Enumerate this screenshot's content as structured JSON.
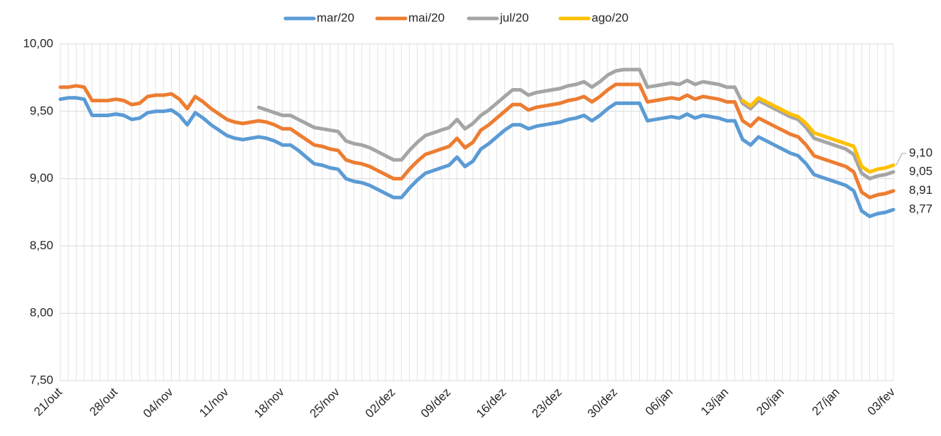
{
  "chart_data": {
    "type": "line",
    "categories": [
      "21/out",
      null,
      null,
      null,
      null,
      null,
      null,
      "28/out",
      null,
      null,
      null,
      null,
      null,
      null,
      "04/nov",
      null,
      null,
      null,
      null,
      null,
      null,
      "11/nov",
      null,
      null,
      null,
      null,
      null,
      null,
      "18/nov",
      null,
      null,
      null,
      null,
      null,
      null,
      "25/nov",
      null,
      null,
      null,
      null,
      null,
      null,
      "02/dez",
      null,
      null,
      null,
      null,
      null,
      null,
      "09/dez",
      null,
      null,
      null,
      null,
      null,
      null,
      "16/dez",
      null,
      null,
      null,
      null,
      null,
      null,
      "23/dez",
      null,
      null,
      null,
      null,
      null,
      null,
      "30/dez",
      null,
      null,
      null,
      null,
      null,
      null,
      "06/jan",
      null,
      null,
      null,
      null,
      null,
      null,
      "13/jan",
      null,
      null,
      null,
      null,
      null,
      null,
      "20/jan",
      null,
      null,
      null,
      null,
      null,
      null,
      "27/jan",
      null,
      null,
      null,
      null,
      null,
      null,
      "03/fev"
    ],
    "series": [
      {
        "name": "mar/20",
        "color": "#5b9bd5",
        "values": [
          9.59,
          9.6,
          9.6,
          9.59,
          9.47,
          9.47,
          9.47,
          9.48,
          9.47,
          9.44,
          9.45,
          9.49,
          9.5,
          9.5,
          9.51,
          9.47,
          9.4,
          9.49,
          9.45,
          9.4,
          9.36,
          9.32,
          9.3,
          9.29,
          9.3,
          9.31,
          9.3,
          9.28,
          9.25,
          9.25,
          9.21,
          9.16,
          9.11,
          9.1,
          9.08,
          9.07,
          9.0,
          8.98,
          8.97,
          8.95,
          8.92,
          8.89,
          8.86,
          8.86,
          8.93,
          8.99,
          9.04,
          9.06,
          9.08,
          9.1,
          9.16,
          9.09,
          9.13,
          9.22,
          9.26,
          9.31,
          9.36,
          9.4,
          9.4,
          9.37,
          9.39,
          9.4,
          9.41,
          9.42,
          9.44,
          9.45,
          9.47,
          9.43,
          9.47,
          9.52,
          9.56,
          9.56,
          9.56,
          9.56,
          9.43,
          9.44,
          9.45,
          9.46,
          9.45,
          9.48,
          9.45,
          9.47,
          9.46,
          9.45,
          9.43,
          9.43,
          9.29,
          9.25,
          9.31,
          9.28,
          9.25,
          9.22,
          9.19,
          9.17,
          9.11,
          9.03,
          9.01,
          8.99,
          8.97,
          8.95,
          8.91,
          8.76,
          8.72,
          8.74,
          8.75,
          8.77
        ],
        "value_labels": [
          null,
          null,
          null,
          null,
          null,
          null,
          null,
          null,
          null,
          null,
          null,
          null,
          null,
          null,
          null,
          null,
          null,
          null,
          null,
          null,
          null,
          null,
          null,
          null,
          null,
          null,
          null,
          null,
          null,
          null,
          null,
          null,
          null,
          null,
          null,
          null,
          null,
          null,
          null,
          null,
          null,
          null,
          null,
          null,
          null,
          null,
          null,
          null,
          null,
          null,
          null,
          null,
          null,
          null,
          null,
          null,
          null,
          null,
          null,
          null,
          null,
          null,
          null,
          null,
          null,
          null,
          null,
          null,
          null,
          null,
          null,
          null,
          null,
          null,
          null,
          null,
          null,
          null,
          null,
          null,
          null,
          null,
          null,
          null,
          null,
          null,
          null,
          null,
          null,
          null,
          null,
          null,
          null,
          null,
          null,
          null,
          null,
          null,
          null,
          null,
          null,
          null,
          null,
          null,
          null,
          "8,77"
        ]
      },
      {
        "name": "mai/20",
        "color": "#ed7d31",
        "values": [
          9.68,
          9.68,
          9.69,
          9.68,
          9.58,
          9.58,
          9.58,
          9.59,
          9.58,
          9.55,
          9.56,
          9.61,
          9.62,
          9.62,
          9.63,
          9.59,
          9.52,
          9.61,
          9.57,
          9.52,
          9.48,
          9.44,
          9.42,
          9.41,
          9.42,
          9.43,
          9.42,
          9.4,
          9.37,
          9.37,
          9.33,
          9.29,
          9.25,
          9.24,
          9.22,
          9.21,
          9.14,
          9.12,
          9.11,
          9.09,
          9.06,
          9.03,
          9.0,
          9.0,
          9.07,
          9.13,
          9.18,
          9.2,
          9.22,
          9.24,
          9.3,
          9.23,
          9.27,
          9.36,
          9.4,
          9.45,
          9.5,
          9.55,
          9.55,
          9.51,
          9.53,
          9.54,
          9.55,
          9.56,
          9.58,
          9.59,
          9.61,
          9.57,
          9.61,
          9.66,
          9.7,
          9.7,
          9.7,
          9.7,
          9.57,
          9.58,
          9.59,
          9.6,
          9.59,
          9.62,
          9.59,
          9.61,
          9.6,
          9.59,
          9.57,
          9.57,
          9.43,
          9.39,
          9.45,
          9.42,
          9.39,
          9.36,
          9.33,
          9.31,
          9.25,
          9.17,
          9.15,
          9.13,
          9.11,
          9.09,
          9.05,
          8.9,
          8.86,
          8.88,
          8.89,
          8.91
        ],
        "value_labels": [
          null,
          null,
          null,
          null,
          null,
          null,
          null,
          null,
          null,
          null,
          null,
          null,
          null,
          null,
          null,
          null,
          null,
          null,
          null,
          null,
          null,
          null,
          null,
          null,
          null,
          null,
          null,
          null,
          null,
          null,
          null,
          null,
          null,
          null,
          null,
          null,
          null,
          null,
          null,
          null,
          null,
          null,
          null,
          null,
          null,
          null,
          null,
          null,
          null,
          null,
          null,
          null,
          null,
          null,
          null,
          null,
          null,
          null,
          null,
          null,
          null,
          null,
          null,
          null,
          null,
          null,
          null,
          null,
          null,
          null,
          null,
          null,
          null,
          null,
          null,
          null,
          null,
          null,
          null,
          null,
          null,
          null,
          null,
          null,
          null,
          null,
          null,
          null,
          null,
          null,
          null,
          null,
          null,
          null,
          null,
          null,
          null,
          null,
          null,
          null,
          null,
          null,
          null,
          null,
          null,
          "8,91"
        ]
      },
      {
        "name": "jul/20",
        "color": "#a5a5a5",
        "values": [
          null,
          null,
          null,
          null,
          null,
          null,
          null,
          null,
          null,
          null,
          null,
          null,
          null,
          null,
          null,
          null,
          null,
          null,
          null,
          null,
          null,
          null,
          null,
          null,
          null,
          9.53,
          9.51,
          9.49,
          9.47,
          9.47,
          9.44,
          9.41,
          9.38,
          9.37,
          9.36,
          9.35,
          9.28,
          9.26,
          9.25,
          9.23,
          9.2,
          9.17,
          9.14,
          9.14,
          9.21,
          9.27,
          9.32,
          9.34,
          9.36,
          9.38,
          9.44,
          9.37,
          9.41,
          9.47,
          9.51,
          9.56,
          9.61,
          9.66,
          9.66,
          9.62,
          9.64,
          9.65,
          9.66,
          9.67,
          9.69,
          9.7,
          9.72,
          9.68,
          9.72,
          9.77,
          9.8,
          9.81,
          9.81,
          9.81,
          9.68,
          9.69,
          9.7,
          9.71,
          9.7,
          9.73,
          9.7,
          9.72,
          9.71,
          9.7,
          9.68,
          9.68,
          9.56,
          9.52,
          9.58,
          9.55,
          9.52,
          9.49,
          9.46,
          9.44,
          9.38,
          9.3,
          9.28,
          9.26,
          9.24,
          9.22,
          9.18,
          9.04,
          9.0,
          9.02,
          9.03,
          9.05
        ],
        "value_labels": [
          null,
          null,
          null,
          null,
          null,
          null,
          null,
          null,
          null,
          null,
          null,
          null,
          null,
          null,
          null,
          null,
          null,
          null,
          null,
          null,
          null,
          null,
          null,
          null,
          null,
          null,
          null,
          null,
          null,
          null,
          null,
          null,
          null,
          null,
          null,
          null,
          null,
          null,
          null,
          null,
          null,
          null,
          null,
          null,
          null,
          null,
          null,
          null,
          null,
          null,
          null,
          null,
          null,
          null,
          null,
          null,
          null,
          null,
          null,
          null,
          null,
          null,
          null,
          null,
          null,
          null,
          null,
          null,
          null,
          null,
          null,
          null,
          null,
          null,
          null,
          null,
          null,
          null,
          null,
          null,
          null,
          null,
          null,
          null,
          null,
          null,
          null,
          null,
          null,
          null,
          null,
          null,
          null,
          null,
          null,
          null,
          null,
          null,
          null,
          null,
          null,
          null,
          null,
          null,
          null,
          "9,05"
        ]
      },
      {
        "name": "ago/20",
        "color": "#ffc000",
        "values": [
          null,
          null,
          null,
          null,
          null,
          null,
          null,
          null,
          null,
          null,
          null,
          null,
          null,
          null,
          null,
          null,
          null,
          null,
          null,
          null,
          null,
          null,
          null,
          null,
          null,
          null,
          null,
          null,
          null,
          null,
          null,
          null,
          null,
          null,
          null,
          null,
          null,
          null,
          null,
          null,
          null,
          null,
          null,
          null,
          null,
          null,
          null,
          null,
          null,
          null,
          null,
          null,
          null,
          null,
          null,
          null,
          null,
          null,
          null,
          null,
          null,
          null,
          null,
          null,
          null,
          null,
          null,
          null,
          null,
          null,
          null,
          null,
          null,
          null,
          null,
          null,
          null,
          null,
          null,
          null,
          null,
          null,
          null,
          null,
          null,
          null,
          9.58,
          9.54,
          9.6,
          9.57,
          9.54,
          9.51,
          9.48,
          9.46,
          9.41,
          9.34,
          9.32,
          9.3,
          9.28,
          9.26,
          9.24,
          9.09,
          9.05,
          9.07,
          9.08,
          9.1
        ],
        "value_labels": [
          null,
          null,
          null,
          null,
          null,
          null,
          null,
          null,
          null,
          null,
          null,
          null,
          null,
          null,
          null,
          null,
          null,
          null,
          null,
          null,
          null,
          null,
          null,
          null,
          null,
          null,
          null,
          null,
          null,
          null,
          null,
          null,
          null,
          null,
          null,
          null,
          null,
          null,
          null,
          null,
          null,
          null,
          null,
          null,
          null,
          null,
          null,
          null,
          null,
          null,
          null,
          null,
          null,
          null,
          null,
          null,
          null,
          null,
          null,
          null,
          null,
          null,
          null,
          null,
          null,
          null,
          null,
          null,
          null,
          null,
          null,
          null,
          null,
          null,
          null,
          null,
          null,
          null,
          null,
          null,
          null,
          null,
          null,
          null,
          null,
          null,
          null,
          null,
          null,
          null,
          null,
          null,
          null,
          null,
          null,
          null,
          null,
          null,
          null,
          null,
          null,
          null,
          null,
          null,
          null,
          "9,10"
        ]
      }
    ],
    "ylim": [
      7.5,
      10
    ],
    "yticks": [
      {
        "value": 7.5,
        "label": "7,50"
      },
      {
        "value": 8,
        "label": "8,00"
      },
      {
        "value": 8.5,
        "label": "8,50"
      },
      {
        "value": 9,
        "label": "9,00"
      },
      {
        "value": 9.5,
        "label": "9,50"
      },
      {
        "value": 10,
        "label": "10,00"
      }
    ],
    "grid": true,
    "legend": "top"
  }
}
